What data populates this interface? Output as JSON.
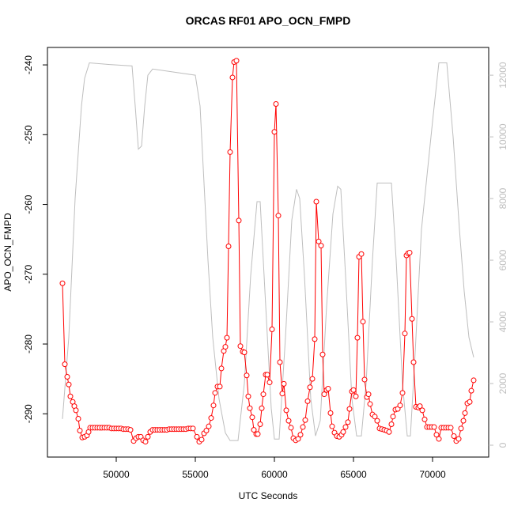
{
  "chart_data": {
    "type": "line",
    "title": "ORCAS RF01 APO_OCN_FMPD",
    "x_label": "UTC Seconds",
    "y_label": "APO_OCN_FMPD",
    "xlim": [
      45650,
      73550
    ],
    "xticks": [
      50000,
      55000,
      60000,
      65000,
      70000
    ],
    "ylim": [
      -296.2,
      -237.5
    ],
    "yticks": [
      -290,
      -280,
      -270,
      -260,
      -250,
      -240
    ],
    "y2lim": [
      -385,
      12900
    ],
    "y2ticks": [
      0,
      2000,
      4000,
      6000,
      8000,
      10000,
      12000
    ],
    "y2_color": "#bebebe",
    "series": [
      {
        "color": "#bebebe",
        "axis": "y2",
        "markers": false,
        "x": [
          46600,
          47000,
          47400,
          47800,
          48000,
          48300,
          49500,
          51000,
          51200,
          51400,
          51600,
          51800,
          52000,
          52300,
          55000,
          55300,
          55500,
          55800,
          56100,
          56500,
          56900,
          57200,
          57700,
          58100,
          58500,
          58900,
          59100,
          59400,
          59800,
          60000,
          60300,
          60700,
          61100,
          61400,
          61600,
          61900,
          62300,
          62600,
          62900,
          63300,
          63700,
          64000,
          64200,
          64500,
          64900,
          65200,
          65500,
          65800,
          66200,
          66500,
          67400,
          67700,
          68100,
          68400,
          68600,
          68900,
          69300,
          69600,
          70000,
          70400,
          70900,
          71300,
          71700,
          72000,
          72300,
          72600
        ],
        "values": [
          850,
          3500,
          8000,
          11000,
          11900,
          12400,
          12350,
          12300,
          11000,
          9600,
          9700,
          11000,
          12000,
          12200,
          12000,
          11000,
          9000,
          6000,
          3500,
          1500,
          400,
          150,
          150,
          2000,
          5500,
          7900,
          7900,
          5000,
          1200,
          200,
          200,
          3500,
          7300,
          8300,
          8000,
          5500,
          1500,
          300,
          800,
          4500,
          7500,
          8400,
          8300,
          5500,
          1500,
          300,
          300,
          2000,
          6000,
          8500,
          8500,
          6000,
          2000,
          300,
          300,
          3000,
          7000,
          8500,
          10500,
          12400,
          12400,
          10000,
          7000,
          5000,
          3500,
          2850
        ]
      },
      {
        "color": "#ff0000",
        "axis": "y",
        "markers": true,
        "x": [
          46600,
          46750,
          46900,
          47000,
          47100,
          47250,
          47350,
          47450,
          47600,
          47700,
          47850,
          48000,
          48150,
          48250,
          48350,
          48500,
          48650,
          48800,
          48950,
          49100,
          49250,
          49400,
          49550,
          49700,
          49850,
          50000,
          50150,
          50300,
          50450,
          50600,
          50750,
          50900,
          51100,
          51250,
          51400,
          51550,
          51700,
          51850,
          52000,
          52150,
          52300,
          52450,
          52600,
          52750,
          52900,
          53050,
          53200,
          53350,
          53500,
          53650,
          53800,
          53950,
          54100,
          54250,
          54400,
          54550,
          54700,
          54850,
          55100,
          55250,
          55400,
          55550,
          55700,
          55850,
          56000,
          56150,
          56250,
          56400,
          56550,
          56650,
          56800,
          56900,
          57000,
          57100,
          57200,
          57350,
          57450,
          57600,
          57750,
          57850,
          58000,
          58100,
          58250,
          58350,
          58450,
          58600,
          58700,
          58850,
          58950,
          59100,
          59200,
          59300,
          59450,
          59550,
          59700,
          59850,
          60000,
          60100,
          60250,
          60350,
          60500,
          60600,
          60750,
          60900,
          61050,
          61200,
          61350,
          61500,
          61650,
          61800,
          61950,
          62100,
          62250,
          62400,
          62550,
          62650,
          62800,
          62950,
          63050,
          63150,
          63300,
          63400,
          63550,
          63650,
          63800,
          63950,
          64100,
          64250,
          64350,
          64500,
          64650,
          64750,
          64900,
          65000,
          65150,
          65250,
          65350,
          65500,
          65600,
          65700,
          65850,
          65950,
          66050,
          66200,
          66350,
          66500,
          66650,
          66800,
          66950,
          67100,
          67250,
          67400,
          67500,
          67650,
          67800,
          67950,
          68100,
          68250,
          68350,
          68450,
          68550,
          68700,
          68800,
          68950,
          69100,
          69200,
          69350,
          69500,
          69650,
          69800,
          69950,
          70100,
          70250,
          70400,
          70550,
          70700,
          70850,
          71000,
          71150,
          71350,
          71500,
          71650,
          71800,
          71950,
          72050,
          72200,
          72350,
          72450,
          72600
        ],
        "values": [
          -271.3,
          -282.9,
          -284.7,
          -285.8,
          -287.5,
          -288.3,
          -288.9,
          -289.5,
          -290.7,
          -292.4,
          -293.4,
          -293.3,
          -293.1,
          -292.6,
          -292.0,
          -292.0,
          -292.0,
          -292.0,
          -292.0,
          -292.0,
          -292.0,
          -292.0,
          -292.0,
          -292.1,
          -292.1,
          -292.1,
          -292.1,
          -292.1,
          -292.2,
          -292.2,
          -292.2,
          -292.3,
          -293.9,
          -293.5,
          -293.3,
          -293.3,
          -293.8,
          -294.0,
          -293.3,
          -292.6,
          -292.3,
          -292.3,
          -292.3,
          -292.3,
          -292.3,
          -292.3,
          -292.3,
          -292.2,
          -292.2,
          -292.2,
          -292.2,
          -292.2,
          -292.2,
          -292.2,
          -292.2,
          -292.1,
          -292.1,
          -292.1,
          -293.3,
          -294.0,
          -293.7,
          -292.8,
          -292.4,
          -291.8,
          -290.6,
          -288.8,
          -287.0,
          -286.1,
          -286.1,
          -283.5,
          -281.0,
          -280.4,
          -279.1,
          -266.0,
          -252.5,
          -241.8,
          -239.6,
          -239.4,
          -262.3,
          -280.3,
          -281.1,
          -281.2,
          -284.5,
          -287.5,
          -289.2,
          -290.5,
          -292.3,
          -292.9,
          -292.9,
          -291.5,
          -289.2,
          -287.2,
          -284.4,
          -284.4,
          -285.5,
          -277.9,
          -249.6,
          -245.6,
          -261.6,
          -282.6,
          -287.1,
          -285.7,
          -289.5,
          -291.0,
          -292.0,
          -293.5,
          -293.8,
          -293.6,
          -293.0,
          -291.9,
          -290.9,
          -288.2,
          -286.2,
          -285.0,
          -279.3,
          -259.6,
          -265.3,
          -265.9,
          -281.5,
          -287.2,
          -286.6,
          -286.4,
          -289.9,
          -291.8,
          -292.7,
          -293.2,
          -293.3,
          -293.0,
          -292.6,
          -291.9,
          -291.2,
          -289.3,
          -286.8,
          -286.6,
          -287.5,
          -279.1,
          -267.5,
          -267.1,
          -276.8,
          -285.1,
          -287.6,
          -287.2,
          -288.6,
          -290.1,
          -290.4,
          -291.0,
          -292.1,
          -292.2,
          -292.3,
          -292.4,
          -292.6,
          -291.5,
          -290.4,
          -289.4,
          -289.3,
          -288.8,
          -287.0,
          -278.5,
          -267.3,
          -267.0,
          -266.9,
          -276.4,
          -282.6,
          -289.0,
          -289.1,
          -288.9,
          -289.5,
          -290.8,
          -291.9,
          -291.9,
          -291.9,
          -291.9,
          -293.0,
          -293.6,
          -292.0,
          -292.0,
          -292.0,
          -292.0,
          -292.0,
          -293.2,
          -293.9,
          -293.6,
          -292.1,
          -291.0,
          -289.9,
          -288.5,
          -288.3,
          -286.7,
          -285.2
        ]
      }
    ]
  }
}
